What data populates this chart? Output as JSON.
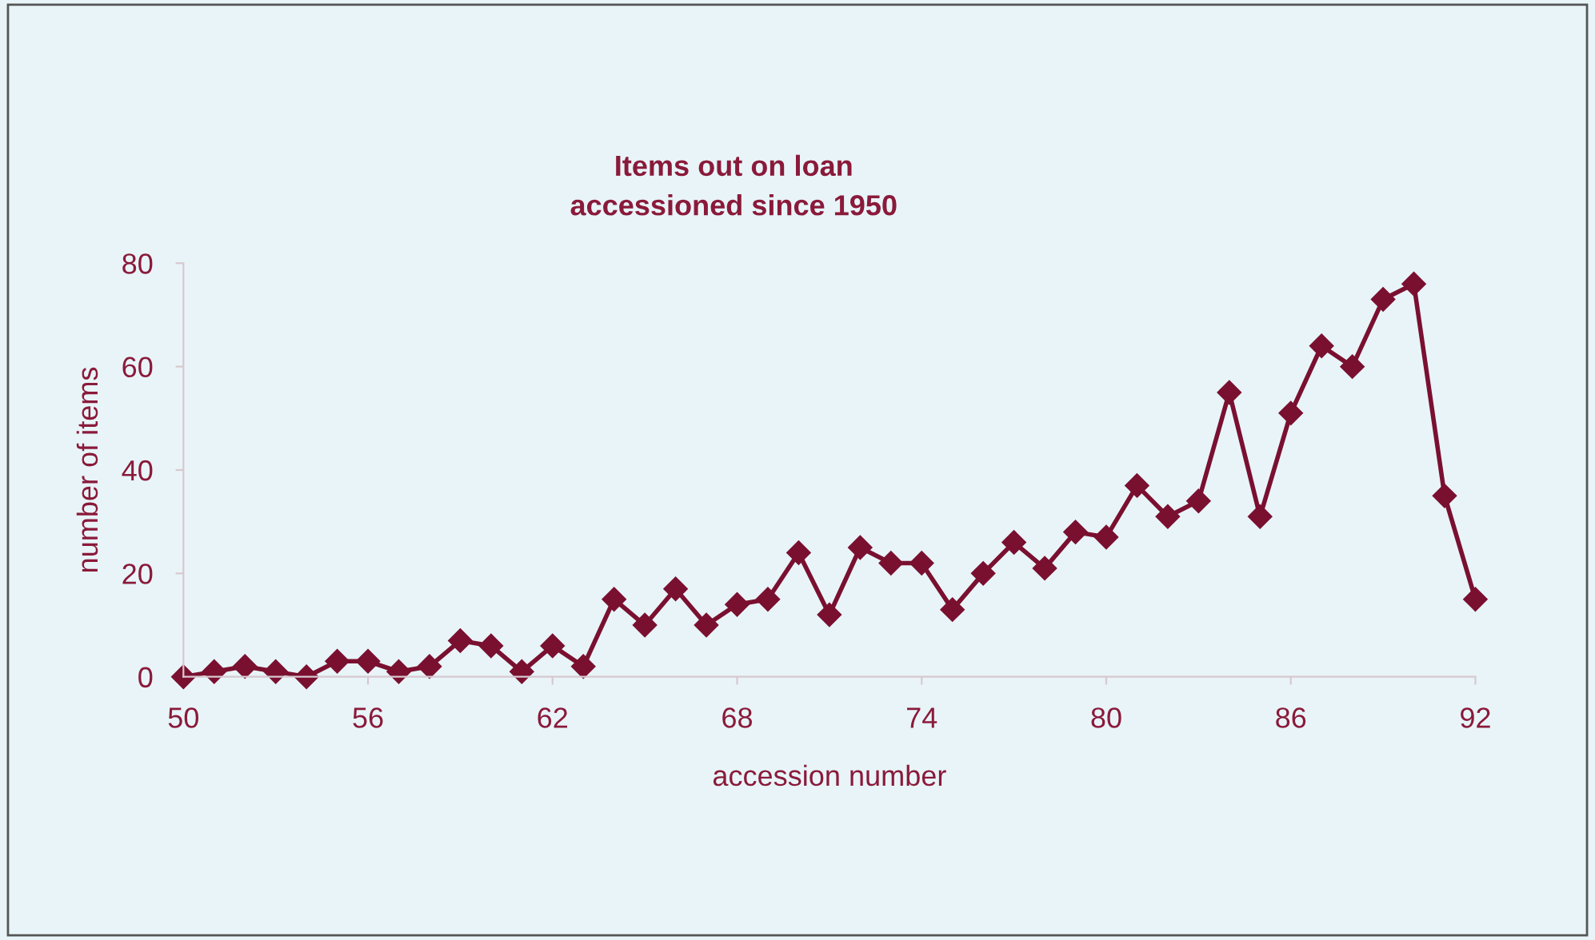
{
  "chart_data": {
    "type": "line",
    "title": "Items out on loan\naccessioned since 1950",
    "xlabel": "accession number",
    "ylabel": "number of items",
    "x": [
      50,
      51,
      52,
      53,
      54,
      55,
      56,
      57,
      58,
      59,
      60,
      61,
      62,
      63,
      64,
      65,
      66,
      67,
      68,
      69,
      70,
      71,
      72,
      73,
      74,
      75,
      76,
      77,
      78,
      79,
      80,
      81,
      82,
      83,
      84,
      85,
      86,
      87,
      88,
      89,
      90,
      91,
      92
    ],
    "series": [
      {
        "color": "#7a1030",
        "values": [
          0,
          1,
          2,
          1,
          0,
          3,
          3,
          1,
          2,
          7,
          6,
          1,
          6,
          2,
          15,
          10,
          17,
          10,
          14,
          15,
          24,
          12,
          25,
          22,
          22,
          13,
          20,
          26,
          21,
          28,
          27,
          37,
          31,
          34,
          55,
          31,
          51,
          64,
          60,
          73,
          76,
          35,
          15
        ]
      }
    ],
    "xlim": [
      50,
      92
    ],
    "xticks": [
      50,
      56,
      62,
      68,
      74,
      80,
      86,
      92
    ],
    "ylim": [
      0,
      80
    ],
    "yticks": [
      0,
      20,
      40,
      60,
      80
    ],
    "marker": "diamond",
    "line_style": "solid",
    "grid": false,
    "legend": false
  }
}
